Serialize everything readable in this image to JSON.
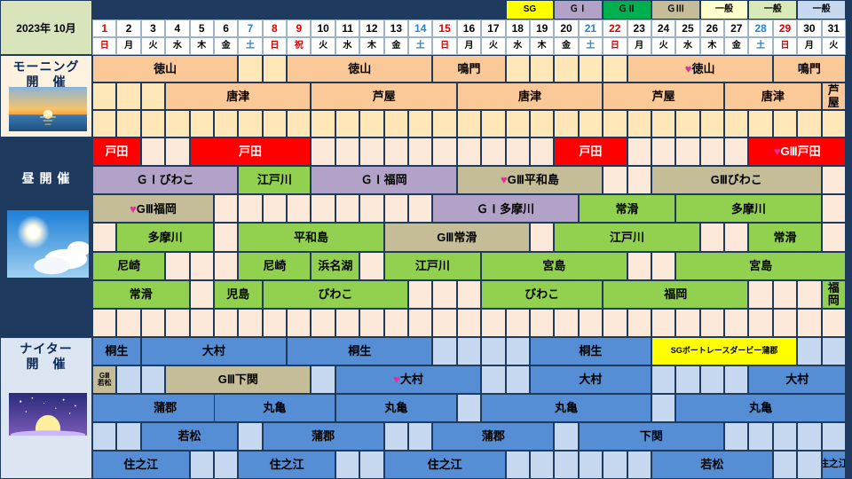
{
  "title": "2023年 10月",
  "legend": [
    {
      "label": "SG",
      "color": "#ffff00",
      "text": "#000000"
    },
    {
      "label": "ＧⅠ",
      "color": "#b3a2c7",
      "text": "#000000"
    },
    {
      "label": "ＧⅡ",
      "color": "#00b050",
      "text": "#000000"
    },
    {
      "label": "ＧⅢ",
      "color": "#c4bd97",
      "text": "#000000"
    },
    {
      "label": "一般",
      "color": "#ffffcc",
      "text": "#000000"
    },
    {
      "label": "一般",
      "color": "#d8eab8",
      "text": "#000000"
    },
    {
      "label": "一般",
      "color": "#c6d9f1",
      "text": "#000000"
    }
  ],
  "days": [
    {
      "n": "1",
      "w": "日",
      "dc": "#e00000",
      "wc": "#e00000"
    },
    {
      "n": "2",
      "w": "月",
      "dc": "#000000",
      "wc": "#000000"
    },
    {
      "n": "3",
      "w": "火",
      "dc": "#000000",
      "wc": "#000000"
    },
    {
      "n": "4",
      "w": "水",
      "dc": "#000000",
      "wc": "#000000"
    },
    {
      "n": "5",
      "w": "木",
      "dc": "#000000",
      "wc": "#000000"
    },
    {
      "n": "6",
      "w": "金",
      "dc": "#000000",
      "wc": "#000000"
    },
    {
      "n": "7",
      "w": "土",
      "dc": "#2a7fd0",
      "wc": "#2a7fd0"
    },
    {
      "n": "8",
      "w": "日",
      "dc": "#e00000",
      "wc": "#e00000"
    },
    {
      "n": "9",
      "w": "祝",
      "dc": "#e00000",
      "wc": "#e00000"
    },
    {
      "n": "10",
      "w": "火",
      "dc": "#000000",
      "wc": "#000000"
    },
    {
      "n": "11",
      "w": "水",
      "dc": "#000000",
      "wc": "#000000"
    },
    {
      "n": "12",
      "w": "木",
      "dc": "#000000",
      "wc": "#000000"
    },
    {
      "n": "13",
      "w": "金",
      "dc": "#000000",
      "wc": "#000000"
    },
    {
      "n": "14",
      "w": "土",
      "dc": "#2a7fd0",
      "wc": "#2a7fd0"
    },
    {
      "n": "15",
      "w": "日",
      "dc": "#e00000",
      "wc": "#e00000"
    },
    {
      "n": "16",
      "w": "月",
      "dc": "#000000",
      "wc": "#000000"
    },
    {
      "n": "17",
      "w": "火",
      "dc": "#000000",
      "wc": "#000000"
    },
    {
      "n": "18",
      "w": "水",
      "dc": "#000000",
      "wc": "#000000"
    },
    {
      "n": "19",
      "w": "木",
      "dc": "#000000",
      "wc": "#000000"
    },
    {
      "n": "20",
      "w": "金",
      "dc": "#000000",
      "wc": "#000000"
    },
    {
      "n": "21",
      "w": "土",
      "dc": "#2a7fd0",
      "wc": "#2a7fd0"
    },
    {
      "n": "22",
      "w": "日",
      "dc": "#e00000",
      "wc": "#e00000"
    },
    {
      "n": "23",
      "w": "月",
      "dc": "#000000",
      "wc": "#000000"
    },
    {
      "n": "24",
      "w": "火",
      "dc": "#000000",
      "wc": "#000000"
    },
    {
      "n": "25",
      "w": "水",
      "dc": "#000000",
      "wc": "#000000"
    },
    {
      "n": "26",
      "w": "木",
      "dc": "#000000",
      "wc": "#000000"
    },
    {
      "n": "27",
      "w": "金",
      "dc": "#000000",
      "wc": "#000000"
    },
    {
      "n": "28",
      "w": "土",
      "dc": "#2a7fd0",
      "wc": "#2a7fd0"
    },
    {
      "n": "29",
      "w": "日",
      "dc": "#e00000",
      "wc": "#e00000"
    },
    {
      "n": "30",
      "w": "月",
      "dc": "#000000",
      "wc": "#000000"
    },
    {
      "n": "31",
      "w": "火",
      "dc": "#000000",
      "wc": "#000000"
    }
  ],
  "sections": [
    {
      "name": "morning",
      "label": [
        "モーニング",
        "開　催"
      ],
      "picture": "sunrise-over-sea",
      "label_bg": "#fdf2e0",
      "empty_color": "#ffe7b8",
      "rows": [
        [
          {
            "s": 1,
            "e": 6,
            "t": "徳山",
            "c": "#fbc898"
          },
          {
            "s": 9,
            "e": 14,
            "t": "徳山",
            "c": "#fbc898"
          },
          {
            "s": 15,
            "e": 17,
            "t": "鳴門",
            "c": "#fbc898"
          },
          {
            "s": 23,
            "e": 28,
            "t": "♥徳山",
            "c": "#fbc898"
          },
          {
            "s": 29,
            "e": 31,
            "t": "鳴門",
            "c": "#fbc898"
          }
        ],
        [
          {
            "s": 4,
            "e": 9,
            "t": "唐津",
            "c": "#fbc898"
          },
          {
            "s": 10,
            "e": 15,
            "t": "芦屋",
            "c": "#fbc898"
          },
          {
            "s": 16,
            "e": 21,
            "t": "唐津",
            "c": "#fbc898"
          },
          {
            "s": 22,
            "e": 26,
            "t": "芦屋",
            "c": "#fbc898"
          },
          {
            "s": 27,
            "e": 30,
            "t": "唐津",
            "c": "#fbc898"
          },
          {
            "s": 31,
            "e": 31,
            "t": "芦\n屋",
            "c": "#fbc898"
          }
        ],
        []
      ]
    },
    {
      "name": "daytime",
      "label": [
        "昼 開 催"
      ],
      "picture": "sun-and-clouds",
      "label_bg": "#1f3a5f",
      "empty_color": "#fde9d9",
      "rows": [
        [
          {
            "s": 1,
            "e": 2,
            "t": "戸田",
            "c": "#ff0000",
            "tc": "#ffffff"
          },
          {
            "s": 5,
            "e": 9,
            "t": "戸田",
            "c": "#ff0000",
            "tc": "#ffffff"
          },
          {
            "s": 20,
            "e": 22,
            "t": "戸田",
            "c": "#ff0000",
            "tc": "#ffffff"
          },
          {
            "s": 28,
            "e": 31,
            "t": "♥GⅢ戸田",
            "c": "#ff0000",
            "tc": "#ffffff"
          }
        ],
        [
          {
            "s": 1,
            "e": 6,
            "t": "ＧⅠびわこ",
            "c": "#b3a2c7"
          },
          {
            "s": 7,
            "e": 9,
            "t": "江戸川",
            "c": "#92d050"
          },
          {
            "s": 10,
            "e": 15,
            "t": "ＧⅠ福岡",
            "c": "#b3a2c7"
          },
          {
            "s": 16,
            "e": 21,
            "t": "♥GⅢ平和島",
            "c": "#c4bd97"
          },
          {
            "s": 24,
            "e": 30,
            "t": "GⅢびわこ",
            "c": "#c4bd97"
          }
        ],
        [
          {
            "s": 1,
            "e": 5,
            "t": "♥GⅢ福岡",
            "c": "#c4bd97"
          },
          {
            "s": 15,
            "e": 20,
            "t": "ＧⅠ多摩川",
            "c": "#b3a2c7"
          },
          {
            "s": 21,
            "e": 24,
            "t": "常滑",
            "c": "#92d050"
          },
          {
            "s": 25,
            "e": 30,
            "t": "多摩川",
            "c": "#92d050"
          }
        ],
        [
          {
            "s": 2,
            "e": 5,
            "t": "多摩川",
            "c": "#92d050"
          },
          {
            "s": 7,
            "e": 12,
            "t": "平和島",
            "c": "#92d050"
          },
          {
            "s": 13,
            "e": 18,
            "t": "GⅢ常滑",
            "c": "#c4bd97"
          },
          {
            "s": 20,
            "e": 25,
            "t": "江戸川",
            "c": "#92d050"
          },
          {
            "s": 28,
            "e": 30,
            "t": "常滑",
            "c": "#92d050"
          }
        ],
        [
          {
            "s": 1,
            "e": 3,
            "t": "尼崎",
            "c": "#92d050"
          },
          {
            "s": 7,
            "e": 9,
            "t": "尼崎",
            "c": "#92d050"
          },
          {
            "s": 10,
            "e": 11,
            "t": "浜名湖",
            "c": "#92d050"
          },
          {
            "s": 13,
            "e": 16,
            "t": "江戸川",
            "c": "#92d050"
          },
          {
            "s": 17,
            "e": 22,
            "t": "宮島",
            "c": "#92d050"
          },
          {
            "s": 25,
            "e": 31,
            "t": "宮島",
            "c": "#92d050"
          }
        ],
        [
          {
            "s": 1,
            "e": 4,
            "t": "常滑",
            "c": "#92d050"
          },
          {
            "s": 6,
            "e": 7,
            "t": "児島",
            "c": "#92d050"
          },
          {
            "s": 8,
            "e": 13,
            "t": "びわこ",
            "c": "#92d050"
          },
          {
            "s": 17,
            "e": 21,
            "t": "びわこ",
            "c": "#92d050"
          },
          {
            "s": 22,
            "e": 27,
            "t": "福岡",
            "c": "#92d050"
          },
          {
            "s": 31,
            "e": 31,
            "t": "福\n岡",
            "c": "#92d050"
          }
        ],
        []
      ]
    },
    {
      "name": "nighter",
      "label": [
        "ナイター",
        "開　催"
      ],
      "picture": "moon-and-stars",
      "label_bg": "#dce6f2",
      "empty_color": "#c6d9f1",
      "rows": [
        [
          {
            "s": 1,
            "e": 2,
            "t": "桐生",
            "c": "#558ed5"
          },
          {
            "s": 3,
            "e": 8,
            "t": "大村",
            "c": "#558ed5"
          },
          {
            "s": 9,
            "e": 14,
            "t": "桐生",
            "c": "#558ed5"
          },
          {
            "s": 19,
            "e": 23,
            "t": "桐生",
            "c": "#558ed5"
          },
          {
            "s": 24,
            "e": 29,
            "t": "SGボートレースダービー蒲郡",
            "c": "#ffff00",
            "fs": 9
          }
        ],
        [
          {
            "s": 1,
            "e": 1,
            "t": "GⅢ\n若松",
            "c": "#c4bd97",
            "fs": 8
          },
          {
            "s": 4,
            "e": 9,
            "t": "GⅢ下関",
            "c": "#c4bd97"
          },
          {
            "s": 11,
            "e": 16,
            "t": "♥大村",
            "c": "#558ed5"
          },
          {
            "s": 19,
            "e": 23,
            "t": "大村",
            "c": "#558ed5"
          },
          {
            "s": 28,
            "e": 31,
            "t": "大村",
            "c": "#558ed5"
          }
        ],
        [
          {
            "s": 1,
            "e": 6,
            "t": "蒲郡",
            "c": "#558ed5"
          },
          {
            "s": 6,
            "e": 10,
            "t": "丸亀",
            "c": "#558ed5"
          },
          {
            "s": 11,
            "e": 15,
            "t": "丸亀",
            "c": "#558ed5"
          },
          {
            "s": 17,
            "e": 23,
            "t": "丸亀",
            "c": "#558ed5"
          },
          {
            "s": 25,
            "e": 31,
            "t": "丸亀",
            "c": "#558ed5"
          }
        ],
        [
          {
            "s": 3,
            "e": 6,
            "t": "若松",
            "c": "#558ed5"
          },
          {
            "s": 8,
            "e": 12,
            "t": "蒲郡",
            "c": "#558ed5"
          },
          {
            "s": 15,
            "e": 19,
            "t": "蒲郡",
            "c": "#558ed5"
          },
          {
            "s": 21,
            "e": 26,
            "t": "下関",
            "c": "#558ed5"
          }
        ],
        [
          {
            "s": 1,
            "e": 4,
            "t": "住之江",
            "c": "#558ed5"
          },
          {
            "s": 7,
            "e": 10,
            "t": "住之江",
            "c": "#558ed5"
          },
          {
            "s": 13,
            "e": 17,
            "t": "住之江",
            "c": "#558ed5"
          },
          {
            "s": 24,
            "e": 28,
            "t": "若松",
            "c": "#558ed5"
          },
          {
            "s": 31,
            "e": 31,
            "t": "住之江",
            "c": "#558ed5",
            "fs": 11
          }
        ]
      ]
    }
  ]
}
